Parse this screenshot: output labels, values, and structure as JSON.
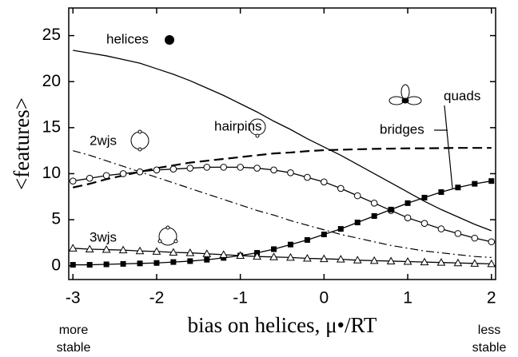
{
  "chart_data": {
    "type": "line",
    "xlabel": "bias on helices, μ•/RT",
    "ylabel": "<features>",
    "side_labels": {
      "left": [
        "more",
        "stable"
      ],
      "right": [
        "less",
        "stable"
      ]
    },
    "x": [
      -3,
      -2.8,
      -2.6,
      -2.4,
      -2.2,
      -2,
      -1.8,
      -1.6,
      -1.4,
      -1.2,
      -1,
      -0.8,
      -0.6,
      -0.4,
      -0.2,
      0,
      0.2,
      0.4,
      0.6,
      0.8,
      1,
      1.2,
      1.4,
      1.6,
      1.8,
      2
    ],
    "series": [
      {
        "name": "helices",
        "color": "#000",
        "style": "solid",
        "marker": null,
        "values": [
          23.4,
          23.1,
          22.8,
          22.4,
          22.0,
          21.4,
          20.8,
          20.1,
          19.3,
          18.5,
          17.6,
          16.7,
          15.7,
          14.8,
          13.8,
          12.9,
          12.0,
          11.0,
          10.0,
          9.0,
          8.0,
          7.0,
          6.1,
          5.3,
          4.5,
          3.8
        ]
      },
      {
        "name": "bridges",
        "color": "#000",
        "style": "dashed",
        "marker": null,
        "values": [
          8.5,
          8.9,
          9.4,
          9.8,
          10.2,
          10.6,
          10.9,
          11.2,
          11.4,
          11.6,
          11.8,
          12.0,
          12.2,
          12.3,
          12.45,
          12.55,
          12.6,
          12.65,
          12.7,
          12.72,
          12.75,
          12.75,
          12.78,
          12.8,
          12.8,
          12.8
        ]
      },
      {
        "name": "2wjs",
        "color": "#000",
        "style": "dashdot",
        "marker": null,
        "values": [
          12.5,
          12.0,
          11.4,
          10.8,
          10.2,
          9.6,
          9.0,
          8.4,
          7.8,
          7.2,
          6.6,
          6.0,
          5.5,
          4.9,
          4.4,
          3.9,
          3.4,
          3.0,
          2.6,
          2.2,
          1.9,
          1.6,
          1.4,
          1.2,
          1.0,
          0.9
        ]
      },
      {
        "name": "hairpins",
        "color": "#000",
        "style": "solid",
        "marker": "circle",
        "values": [
          9.2,
          9.5,
          9.8,
          10.0,
          10.2,
          10.4,
          10.5,
          10.6,
          10.7,
          10.7,
          10.7,
          10.6,
          10.4,
          10.1,
          9.6,
          9.1,
          8.4,
          7.6,
          6.8,
          6.0,
          5.2,
          4.6,
          4.0,
          3.5,
          3.0,
          2.6
        ]
      },
      {
        "name": "quads",
        "color": "#000",
        "style": "solid",
        "marker": "square",
        "values": [
          0.1,
          0.1,
          0.15,
          0.2,
          0.25,
          0.3,
          0.4,
          0.5,
          0.65,
          0.85,
          1.1,
          1.4,
          1.8,
          2.3,
          2.8,
          3.4,
          4.0,
          4.7,
          5.4,
          6.1,
          6.8,
          7.4,
          8.0,
          8.5,
          8.9,
          9.2
        ]
      },
      {
        "name": "3wjs",
        "color": "#000",
        "style": "solid",
        "marker": "triangle",
        "values": [
          1.9,
          1.8,
          1.75,
          1.7,
          1.6,
          1.55,
          1.45,
          1.4,
          1.3,
          1.2,
          1.1,
          1.0,
          0.95,
          0.9,
          0.8,
          0.75,
          0.7,
          0.6,
          0.55,
          0.5,
          0.45,
          0.4,
          0.35,
          0.3,
          0.25,
          0.2
        ]
      }
    ],
    "xlim": [
      -3.05,
      2.05
    ],
    "xticks": [
      -3,
      -2,
      -1,
      0,
      1,
      2
    ],
    "ylim": [
      -1.5,
      28
    ],
    "yticks": [
      0,
      5,
      10,
      15,
      20,
      25
    ]
  }
}
